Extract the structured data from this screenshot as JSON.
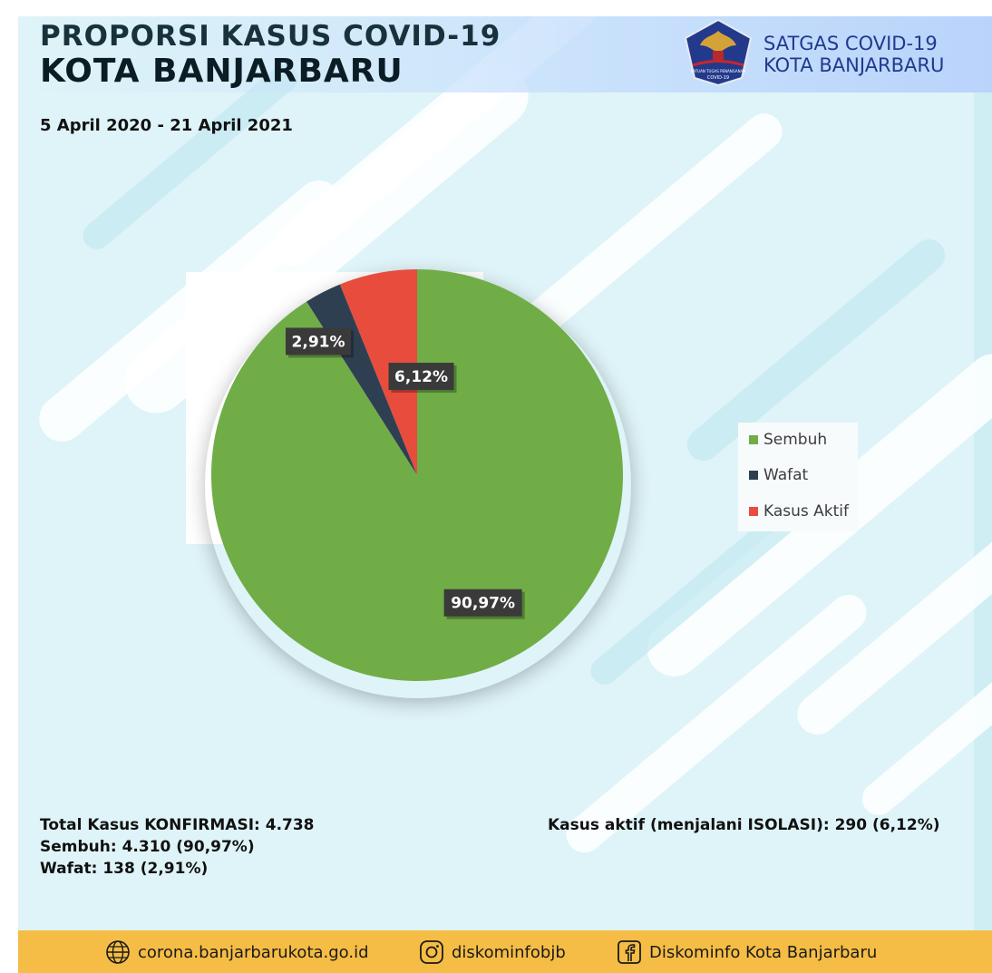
{
  "header": {
    "title_line1": "PROPORSI KASUS COVID-19",
    "title_line2": "KOTA BANJARBARU",
    "brand_line1": "SATGAS COVID-19",
    "brand_line2": "KOTA BANJARBARU",
    "logo_icon": "garuda-emblem-icon",
    "logo_text_1": "SATUAN TUGAS PENANGANAN",
    "logo_text_2": "COVID-19"
  },
  "date_range": "5 April 2020 - 21 April 2021",
  "chart_data": {
    "type": "pie",
    "title": "",
    "categories": [
      "Sembuh",
      "Wafat",
      "Kasus Aktif"
    ],
    "values": [
      90.97,
      2.91,
      6.12
    ],
    "labels": [
      "90,97%",
      "2,91%",
      "6,12%"
    ],
    "colors": [
      "#70ad47",
      "#2f3f52",
      "#e84c3d"
    ],
    "legend_position": "right",
    "start_angle": "12 o'clock, counterclockwise"
  },
  "legend": {
    "items": [
      {
        "label": "Sembuh",
        "color": "#70ad47"
      },
      {
        "label": "Wafat",
        "color": "#2f3f52"
      },
      {
        "label": "Kasus Aktif",
        "color": "#e84c3d"
      }
    ]
  },
  "stats": {
    "total": "Total Kasus KONFIRMASI: 4.738",
    "sembuh": "Sembuh: 4.310 (90,97%)",
    "wafat": "Wafat: 138 (2,91%)",
    "aktif": "Kasus aktif (menjalani ISOLASI): 290 (6,12%)"
  },
  "footer": {
    "website": "corona.banjarbarukota.go.id",
    "instagram": "diskominfobjb",
    "facebook": "Diskominfo Kota Banjarbaru",
    "icons": [
      "globe-icon",
      "instagram-icon",
      "facebook-icon"
    ],
    "background_color": "#f5bd45"
  }
}
